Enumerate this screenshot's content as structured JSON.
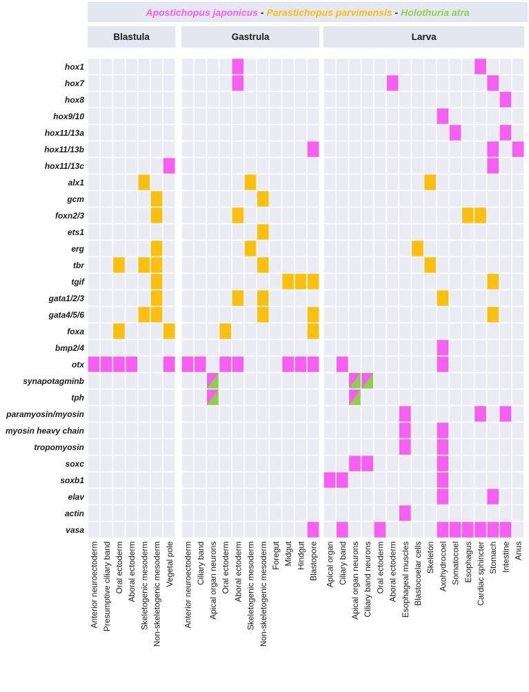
{
  "chart_data": {
    "type": "heatmap",
    "legend": {
      "segments": [
        {
          "text": "Apostichopus japonicus",
          "color": "#f75ef2",
          "italic": true
        },
        {
          "text": " - ",
          "color": "#222222",
          "italic": false
        },
        {
          "text": "Parastichopus parvimensis",
          "color": "#fbbf12",
          "italic": true
        },
        {
          "text": " - ",
          "color": "#222222",
          "italic": false
        },
        {
          "text": "Holothuria atra",
          "color": "#8ed04b",
          "italic": true
        }
      ]
    },
    "colors": {
      "A": "#f75ef2",
      "P": "#fbbf12",
      "H": "#8ed04b",
      "empty": "#ebecf3",
      "header": "#e5e7f0",
      "grid": "#ffffff"
    },
    "panels": [
      {
        "title": "Blastula",
        "columns": [
          "Anterior neuroectoderm",
          "Presumptive ciliary band",
          "Oral ectoderm",
          "Aboral ectoderm",
          "Skeletogenic mesoderm",
          "Non-skeletogenic mesoderm",
          "Vegetal pole"
        ]
      },
      {
        "title": "Gastrula",
        "columns": [
          "Anterior neuroectoderm",
          "Ciliary band",
          "Apical organ neurons",
          "Oral ectoderm",
          "Aboral ectoderm",
          "Skeletogenic mesoderm",
          "Non-skeletogenic mesoderm",
          "Foregut",
          "Midgut",
          "Hindgut",
          "Blastopore"
        ]
      },
      {
        "title": "Larva",
        "columns": [
          "Apical organ",
          "Ciliary band",
          "Apical organ neurons",
          "Ciliary band neurons",
          "Oral ectoderm",
          "Aboral ectoderm",
          "Esophageal muscles",
          "Blastocoelar cells",
          "Skeleton",
          "Axohydrocoel",
          "Somatocoel",
          "Esophagus",
          "Cardiac sphincter",
          "Stomach",
          "Intestine",
          "Anus"
        ]
      }
    ],
    "genes": [
      "hox1",
      "hox7",
      "hox8",
      "hox9/10",
      "hox11/13a",
      "hox11/13b",
      "hox11/13c",
      "alx1",
      "gcm",
      "foxn2/3",
      "ets1",
      "erg",
      "tbr",
      "tgif",
      "gata1/2/3",
      "gata4/5/6",
      "foxa",
      "bmp2/4",
      "otx",
      "synapotagminb",
      "tph",
      "paramyosin/myosin",
      "myosin heavy chain",
      "tropomyosin",
      "soxc",
      "soxb1",
      "elav",
      "actin",
      "vasa"
    ],
    "cells": [
      {
        "gene": "hox1",
        "panel": 1,
        "col": 4,
        "species": "A"
      },
      {
        "gene": "hox1",
        "panel": 2,
        "col": 12,
        "species": "A"
      },
      {
        "gene": "hox7",
        "panel": 1,
        "col": 4,
        "species": "A"
      },
      {
        "gene": "hox7",
        "panel": 2,
        "col": 5,
        "species": "A"
      },
      {
        "gene": "hox7",
        "panel": 2,
        "col": 13,
        "species": "A"
      },
      {
        "gene": "hox8",
        "panel": 2,
        "col": 14,
        "species": "A"
      },
      {
        "gene": "hox9/10",
        "panel": 2,
        "col": 9,
        "species": "A"
      },
      {
        "gene": "hox11/13a",
        "panel": 2,
        "col": 10,
        "species": "A"
      },
      {
        "gene": "hox11/13a",
        "panel": 2,
        "col": 14,
        "species": "A"
      },
      {
        "gene": "hox11/13b",
        "panel": 1,
        "col": 10,
        "species": "A"
      },
      {
        "gene": "hox11/13b",
        "panel": 2,
        "col": 13,
        "species": "A"
      },
      {
        "gene": "hox11/13b",
        "panel": 2,
        "col": 15,
        "species": "A"
      },
      {
        "gene": "hox11/13c",
        "panel": 0,
        "col": 6,
        "species": "A"
      },
      {
        "gene": "hox11/13c",
        "panel": 2,
        "col": 13,
        "species": "A"
      },
      {
        "gene": "alx1",
        "panel": 0,
        "col": 4,
        "species": "P"
      },
      {
        "gene": "alx1",
        "panel": 1,
        "col": 5,
        "species": "P"
      },
      {
        "gene": "alx1",
        "panel": 2,
        "col": 8,
        "species": "P"
      },
      {
        "gene": "gcm",
        "panel": 0,
        "col": 5,
        "species": "P"
      },
      {
        "gene": "gcm",
        "panel": 1,
        "col": 6,
        "species": "P"
      },
      {
        "gene": "foxn2/3",
        "panel": 0,
        "col": 5,
        "species": "P"
      },
      {
        "gene": "foxn2/3",
        "panel": 1,
        "col": 4,
        "species": "P"
      },
      {
        "gene": "foxn2/3",
        "panel": 2,
        "col": 11,
        "species": "P"
      },
      {
        "gene": "foxn2/3",
        "panel": 2,
        "col": 12,
        "species": "P"
      },
      {
        "gene": "ets1",
        "panel": 1,
        "col": 6,
        "species": "P"
      },
      {
        "gene": "erg",
        "panel": 0,
        "col": 5,
        "species": "P"
      },
      {
        "gene": "erg",
        "panel": 1,
        "col": 5,
        "species": "P"
      },
      {
        "gene": "erg",
        "panel": 2,
        "col": 7,
        "species": "P"
      },
      {
        "gene": "tbr",
        "panel": 0,
        "col": 2,
        "species": "P"
      },
      {
        "gene": "tbr",
        "panel": 0,
        "col": 4,
        "species": "P"
      },
      {
        "gene": "tbr",
        "panel": 0,
        "col": 5,
        "species": "P"
      },
      {
        "gene": "tbr",
        "panel": 1,
        "col": 6,
        "species": "P"
      },
      {
        "gene": "tbr",
        "panel": 2,
        "col": 8,
        "species": "P"
      },
      {
        "gene": "tgif",
        "panel": 0,
        "col": 5,
        "species": "P"
      },
      {
        "gene": "tgif",
        "panel": 1,
        "col": 8,
        "species": "P"
      },
      {
        "gene": "tgif",
        "panel": 1,
        "col": 9,
        "species": "P"
      },
      {
        "gene": "tgif",
        "panel": 1,
        "col": 10,
        "species": "P"
      },
      {
        "gene": "tgif",
        "panel": 2,
        "col": 13,
        "species": "P"
      },
      {
        "gene": "gata1/2/3",
        "panel": 0,
        "col": 5,
        "species": "P"
      },
      {
        "gene": "gata1/2/3",
        "panel": 1,
        "col": 4,
        "species": "P"
      },
      {
        "gene": "gata1/2/3",
        "panel": 1,
        "col": 6,
        "species": "P"
      },
      {
        "gene": "gata1/2/3",
        "panel": 2,
        "col": 9,
        "species": "P"
      },
      {
        "gene": "gata4/5/6",
        "panel": 0,
        "col": 4,
        "species": "P"
      },
      {
        "gene": "gata4/5/6",
        "panel": 0,
        "col": 5,
        "species": "P"
      },
      {
        "gene": "gata4/5/6",
        "panel": 1,
        "col": 6,
        "species": "P"
      },
      {
        "gene": "gata4/5/6",
        "panel": 1,
        "col": 10,
        "species": "P"
      },
      {
        "gene": "gata4/5/6",
        "panel": 2,
        "col": 13,
        "species": "P"
      },
      {
        "gene": "foxa",
        "panel": 0,
        "col": 2,
        "species": "P"
      },
      {
        "gene": "foxa",
        "panel": 0,
        "col": 6,
        "species": "P"
      },
      {
        "gene": "foxa",
        "panel": 1,
        "col": 3,
        "species": "P"
      },
      {
        "gene": "foxa",
        "panel": 1,
        "col": 10,
        "species": "P"
      },
      {
        "gene": "bmp2/4",
        "panel": 2,
        "col": 9,
        "species": "A"
      },
      {
        "gene": "otx",
        "panel": 0,
        "col": 0,
        "species": "A"
      },
      {
        "gene": "otx",
        "panel": 0,
        "col": 1,
        "species": "A"
      },
      {
        "gene": "otx",
        "panel": 0,
        "col": 2,
        "species": "A"
      },
      {
        "gene": "otx",
        "panel": 0,
        "col": 3,
        "species": "A"
      },
      {
        "gene": "otx",
        "panel": 0,
        "col": 6,
        "species": "A"
      },
      {
        "gene": "otx",
        "panel": 1,
        "col": 0,
        "species": "A"
      },
      {
        "gene": "otx",
        "panel": 1,
        "col": 1,
        "species": "A"
      },
      {
        "gene": "otx",
        "panel": 1,
        "col": 3,
        "species": "A"
      },
      {
        "gene": "otx",
        "panel": 1,
        "col": 4,
        "species": "A"
      },
      {
        "gene": "otx",
        "panel": 1,
        "col": 8,
        "species": "A"
      },
      {
        "gene": "otx",
        "panel": 1,
        "col": 9,
        "species": "A"
      },
      {
        "gene": "otx",
        "panel": 1,
        "col": 10,
        "species": "A"
      },
      {
        "gene": "otx",
        "panel": 2,
        "col": 1,
        "species": "A"
      },
      {
        "gene": "otx",
        "panel": 2,
        "col": 9,
        "species": "A"
      },
      {
        "gene": "synapotagminb",
        "panel": 1,
        "col": 2,
        "species": "AH"
      },
      {
        "gene": "synapotagminb",
        "panel": 2,
        "col": 2,
        "species": "AH"
      },
      {
        "gene": "synapotagminb",
        "panel": 2,
        "col": 3,
        "species": "AH"
      },
      {
        "gene": "tph",
        "panel": 1,
        "col": 2,
        "species": "AH"
      },
      {
        "gene": "tph",
        "panel": 2,
        "col": 2,
        "species": "AH"
      },
      {
        "gene": "paramyosin/myosin",
        "panel": 2,
        "col": 6,
        "species": "A"
      },
      {
        "gene": "paramyosin/myosin",
        "panel": 2,
        "col": 12,
        "species": "A"
      },
      {
        "gene": "paramyosin/myosin",
        "panel": 2,
        "col": 14,
        "species": "A"
      },
      {
        "gene": "myosin heavy chain",
        "panel": 2,
        "col": 6,
        "species": "A"
      },
      {
        "gene": "myosin heavy chain",
        "panel": 2,
        "col": 9,
        "species": "A"
      },
      {
        "gene": "tropomyosin",
        "panel": 2,
        "col": 6,
        "species": "A"
      },
      {
        "gene": "tropomyosin",
        "panel": 2,
        "col": 9,
        "species": "A"
      },
      {
        "gene": "soxc",
        "panel": 2,
        "col": 2,
        "species": "A"
      },
      {
        "gene": "soxc",
        "panel": 2,
        "col": 3,
        "species": "A"
      },
      {
        "gene": "soxc",
        "panel": 2,
        "col": 9,
        "species": "A"
      },
      {
        "gene": "soxb1",
        "panel": 2,
        "col": 0,
        "species": "A"
      },
      {
        "gene": "soxb1",
        "panel": 2,
        "col": 1,
        "species": "A"
      },
      {
        "gene": "soxb1",
        "panel": 2,
        "col": 9,
        "species": "A"
      },
      {
        "gene": "elav",
        "panel": 2,
        "col": 9,
        "species": "A"
      },
      {
        "gene": "elav",
        "panel": 2,
        "col": 13,
        "species": "A"
      },
      {
        "gene": "actin",
        "panel": 2,
        "col": 6,
        "species": "A"
      },
      {
        "gene": "vasa",
        "panel": 1,
        "col": 10,
        "species": "A"
      },
      {
        "gene": "vasa",
        "panel": 2,
        "col": 1,
        "species": "A"
      },
      {
        "gene": "vasa",
        "panel": 2,
        "col": 4,
        "species": "A"
      },
      {
        "gene": "vasa",
        "panel": 2,
        "col": 9,
        "species": "A"
      },
      {
        "gene": "vasa",
        "panel": 2,
        "col": 10,
        "species": "A"
      },
      {
        "gene": "vasa",
        "panel": 2,
        "col": 11,
        "species": "A"
      },
      {
        "gene": "vasa",
        "panel": 2,
        "col": 12,
        "species": "A"
      },
      {
        "gene": "vasa",
        "panel": 2,
        "col": 13,
        "species": "A"
      },
      {
        "gene": "vasa",
        "panel": 2,
        "col": 14,
        "species": "A"
      }
    ]
  }
}
